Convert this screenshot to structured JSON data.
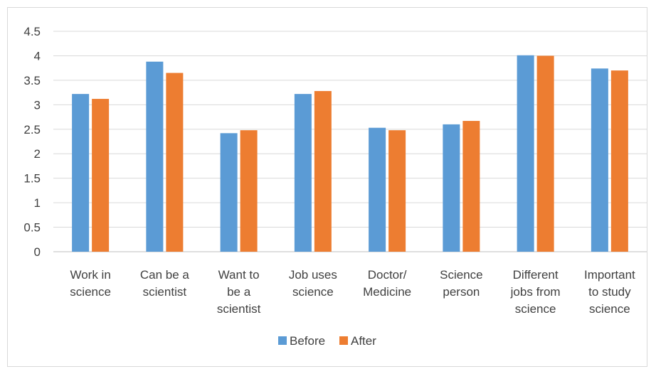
{
  "chart_data": {
    "type": "bar",
    "title": "",
    "xlabel": "",
    "ylabel": "",
    "ylim": [
      0,
      4.5
    ],
    "yticks": [
      "0",
      "0.5",
      "1",
      "1.5",
      "2",
      "2.5",
      "3",
      "3.5",
      "4",
      "4.5"
    ],
    "grid": true,
    "legend_position": "bottom",
    "categories": [
      [
        "Work in",
        "science"
      ],
      [
        "Can be a",
        "scientist"
      ],
      [
        "Want to",
        "be a",
        "scientist"
      ],
      [
        "Job uses",
        "science"
      ],
      [
        "Doctor/",
        "Medicine"
      ],
      [
        "Science",
        "person"
      ],
      [
        "Different",
        "jobs from",
        "science"
      ],
      [
        "Important",
        "to study",
        "science"
      ]
    ],
    "series": [
      {
        "name": "Before",
        "color": "#5b9bd5",
        "values": [
          3.22,
          3.88,
          2.42,
          3.22,
          2.53,
          2.6,
          4.01,
          3.74
        ]
      },
      {
        "name": "After",
        "color": "#ed7d31",
        "values": [
          3.12,
          3.65,
          2.48,
          3.28,
          2.48,
          2.67,
          4.0,
          3.7
        ]
      }
    ]
  }
}
